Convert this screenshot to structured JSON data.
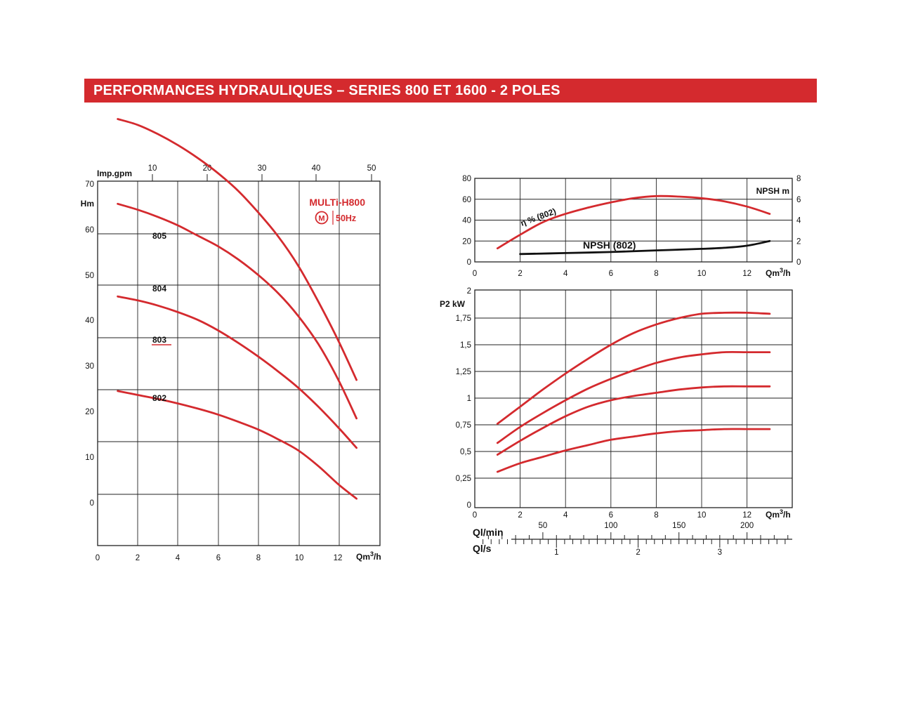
{
  "header": {
    "title": "PERFORMANCES HYDRAULIQUES – SERIES 800 ET 1600 - 2 POLES"
  },
  "brand": {
    "model": "MULTi-H800",
    "logo_letter": "M",
    "freq": "50Hz",
    "color": "#d42a2e"
  },
  "curve_color": "#d42a2e",
  "npsh_color": "#111111",
  "chart_data": [
    {
      "id": "head",
      "type": "line",
      "xlabel": "Qm3/h",
      "ylabel": "Hm",
      "top_axis_label": "Imp.gpm",
      "xlim": [
        0,
        14
      ],
      "ylim": [
        -10,
        70
      ],
      "x_ticks": [
        0,
        2,
        4,
        6,
        8,
        10,
        12
      ],
      "y_ticks": [
        0,
        10,
        20,
        30,
        40,
        50,
        60,
        70
      ],
      "top_ticks": [
        10,
        20,
        30,
        40,
        50
      ],
      "series": [
        {
          "name": "805",
          "x": [
            1,
            2,
            3,
            4,
            5,
            6,
            7,
            8,
            9,
            10,
            11,
            12,
            12.9
          ],
          "y": [
            58.5,
            57.6,
            56.2,
            54.5,
            52.5,
            50.2,
            47.5,
            44.2,
            40.5,
            36.0,
            30.5,
            24.5,
            18.5
          ]
        },
        {
          "name": "804",
          "x": [
            1,
            2,
            3,
            4,
            5,
            6,
            7,
            8,
            9,
            10,
            11,
            12,
            12.9
          ],
          "y": [
            45.5,
            44.6,
            43.5,
            42.2,
            40.6,
            39.0,
            37.0,
            34.6,
            31.8,
            28.3,
            24.0,
            18.5,
            12.6
          ]
        },
        {
          "name": "803",
          "x": [
            1,
            2,
            3,
            4,
            5,
            6,
            7,
            8,
            9,
            10,
            11,
            12,
            12.9
          ],
          "y": [
            31.3,
            30.7,
            29.9,
            28.9,
            27.7,
            26.1,
            24.2,
            22.1,
            19.8,
            17.3,
            14.4,
            11.2,
            8.1
          ]
        },
        {
          "name": "802",
          "x": [
            1,
            2,
            3,
            4,
            5,
            6,
            7,
            8,
            9,
            10,
            11,
            12,
            12.9
          ],
          "y": [
            16.8,
            16.2,
            15.6,
            14.9,
            14.1,
            13.2,
            12.1,
            10.9,
            9.4,
            7.7,
            5.3,
            2.5,
            0.3
          ]
        }
      ]
    },
    {
      "id": "efficiency",
      "type": "line",
      "xlabel": "Qm3/h",
      "y2label": "NPSH m",
      "xlim": [
        0,
        14
      ],
      "ylim": [
        0,
        80
      ],
      "y2lim": [
        0,
        8
      ],
      "x_ticks": [
        0,
        2,
        4,
        6,
        8,
        10,
        12
      ],
      "y_ticks": [
        0,
        20,
        40,
        60,
        80
      ],
      "y2_ticks": [
        0,
        2,
        4,
        6,
        8
      ],
      "series": [
        {
          "name": "η % (802)",
          "axis": "left",
          "x": [
            1,
            2,
            3,
            4,
            5,
            6,
            7,
            8,
            9,
            10,
            11,
            12,
            13
          ],
          "y": [
            13,
            26,
            38,
            46,
            52,
            57,
            61,
            63,
            62.5,
            61,
            58,
            53,
            46
          ]
        },
        {
          "name": "NPSH (802)",
          "axis": "right",
          "x": [
            2,
            4,
            6,
            8,
            10,
            11,
            12,
            13
          ],
          "y": [
            0.75,
            0.85,
            0.95,
            1.1,
            1.25,
            1.35,
            1.55,
            2.0
          ]
        }
      ]
    },
    {
      "id": "power",
      "type": "line",
      "xlabel": "Qm3/h",
      "ylabel": "P2 kW",
      "xlim": [
        0,
        14
      ],
      "ylim": [
        0,
        2
      ],
      "x_ticks": [
        0,
        2,
        4,
        6,
        8,
        10,
        12
      ],
      "y_ticks": [
        "0",
        "0,25",
        "0,5",
        "0,75",
        "1",
        "1,25",
        "1,5",
        "1,75",
        "2"
      ],
      "series": [
        {
          "x": [
            1,
            2,
            3,
            4,
            5,
            6,
            7,
            8,
            9,
            10,
            11,
            12,
            13
          ],
          "y": [
            0.76,
            0.92,
            1.08,
            1.23,
            1.37,
            1.5,
            1.61,
            1.69,
            1.75,
            1.79,
            1.8,
            1.8,
            1.79
          ]
        },
        {
          "x": [
            1,
            2,
            3,
            4,
            5,
            6,
            7,
            8,
            9,
            10,
            11,
            12,
            13
          ],
          "y": [
            0.58,
            0.73,
            0.86,
            0.98,
            1.09,
            1.18,
            1.26,
            1.33,
            1.38,
            1.41,
            1.43,
            1.43,
            1.43
          ]
        },
        {
          "x": [
            1,
            2,
            3,
            4,
            5,
            6,
            7,
            8,
            9,
            10,
            11,
            12,
            13
          ],
          "y": [
            0.47,
            0.6,
            0.72,
            0.83,
            0.92,
            0.98,
            1.02,
            1.05,
            1.08,
            1.1,
            1.11,
            1.11,
            1.11
          ]
        },
        {
          "x": [
            1,
            2,
            3,
            4,
            5,
            6,
            7,
            8,
            9,
            10,
            11,
            12,
            13
          ],
          "y": [
            0.31,
            0.39,
            0.45,
            0.51,
            0.56,
            0.61,
            0.64,
            0.67,
            0.69,
            0.7,
            0.71,
            0.71,
            0.71
          ]
        }
      ],
      "secondary_scales": [
        {
          "label": "Ql/min",
          "ticks": [
            50,
            100,
            150,
            200
          ]
        },
        {
          "label": "Ql/s",
          "ticks": [
            1,
            2,
            3
          ]
        }
      ]
    }
  ]
}
